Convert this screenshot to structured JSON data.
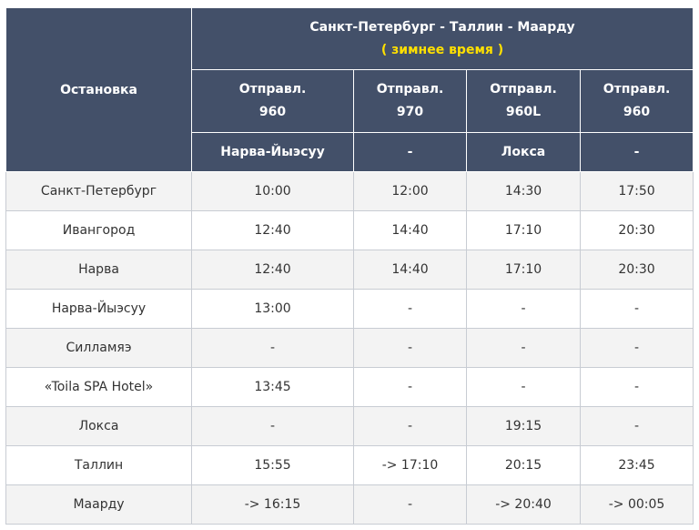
{
  "route_title": "Санкт-Петербург - Таллин - Маарду",
  "season": "( зимнее время )",
  "stop_header": "Остановка",
  "departures": [
    {
      "label": "Отправл.",
      "number": "960",
      "via": "Нарва-Йыэсуу"
    },
    {
      "label": "Отправл.",
      "number": "970",
      "via": "-"
    },
    {
      "label": "Отправл.",
      "number": "960L",
      "via": "Локса"
    },
    {
      "label": "Отправл.",
      "number": "960",
      "via": "-"
    }
  ],
  "rows": [
    {
      "stop": "Санкт-Петербург",
      "times": [
        "10:00",
        "12:00",
        "14:30",
        "17:50"
      ]
    },
    {
      "stop": "Ивангород",
      "times": [
        "12:40",
        "14:40",
        "17:10",
        "20:30"
      ]
    },
    {
      "stop": "Нарва",
      "times": [
        "12:40",
        "14:40",
        "17:10",
        "20:30"
      ]
    },
    {
      "stop": "Нарва-Йыэсуу",
      "times": [
        "13:00",
        "-",
        "-",
        "-"
      ]
    },
    {
      "stop": "Силламяэ",
      "times": [
        "-",
        "-",
        "-",
        "-"
      ]
    },
    {
      "stop": "«Toila SPA Hotel»",
      "times": [
        "13:45",
        "-",
        "-",
        "-"
      ]
    },
    {
      "stop": "Локса",
      "times": [
        "-",
        "-",
        "19:15",
        "-"
      ]
    },
    {
      "stop": "Таллин",
      "times": [
        "15:55",
        "-> 17:10",
        "20:15",
        "23:45"
      ]
    },
    {
      "stop": "Маарду",
      "times": [
        "-> 16:15",
        "-",
        "-> 20:40",
        "-> 00:05"
      ]
    }
  ]
}
